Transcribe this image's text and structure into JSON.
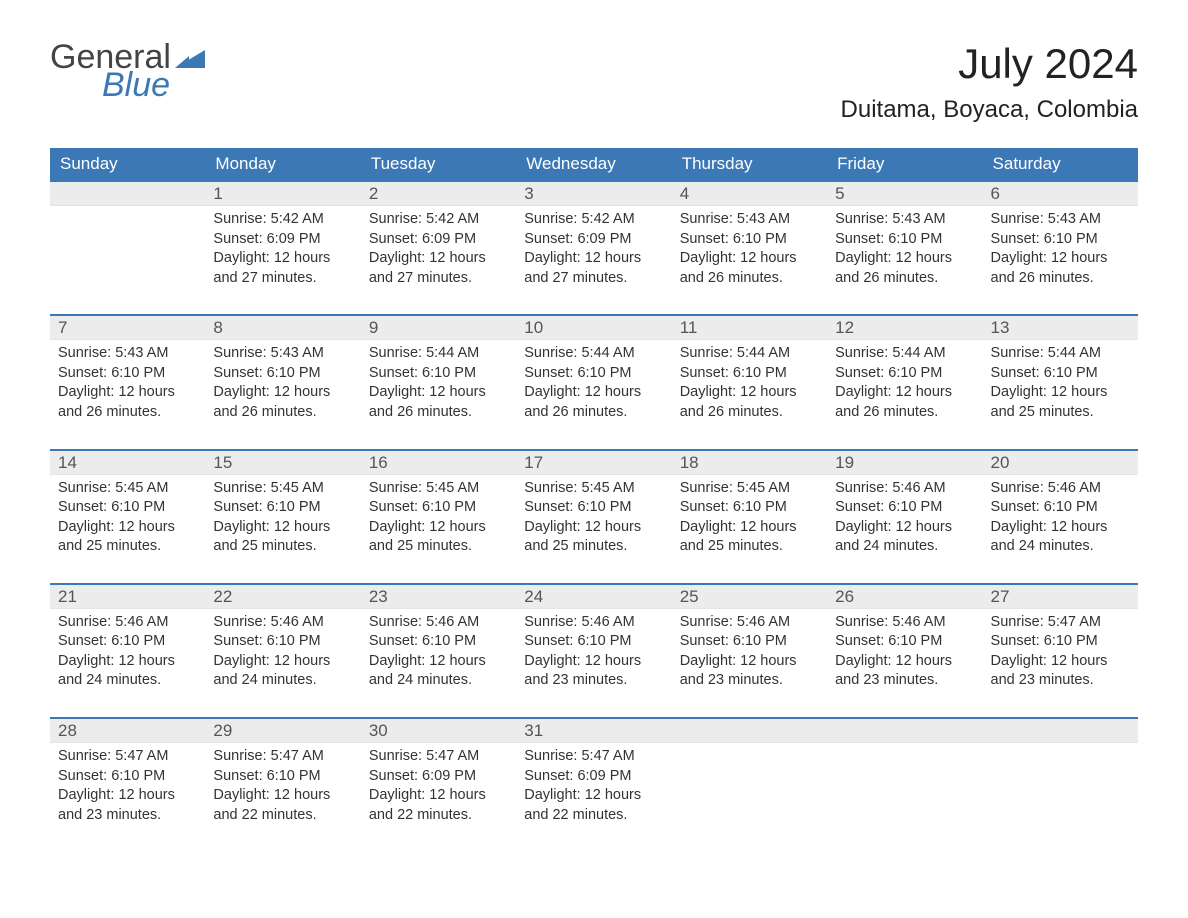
{
  "logo": {
    "general": "General",
    "blue": "Blue",
    "markColor": "#3b78b5"
  },
  "title": "July 2024",
  "location": "Duitama, Boyaca, Colombia",
  "headerBg": "#3b78b5",
  "dayHeaderBg": "#ececec",
  "weekdays": [
    "Sunday",
    "Monday",
    "Tuesday",
    "Wednesday",
    "Thursday",
    "Friday",
    "Saturday"
  ],
  "weeks": [
    [
      null,
      {
        "num": "1",
        "sunrise": "5:42 AM",
        "sunset": "6:09 PM",
        "daylight": "12 hours and 27 minutes."
      },
      {
        "num": "2",
        "sunrise": "5:42 AM",
        "sunset": "6:09 PM",
        "daylight": "12 hours and 27 minutes."
      },
      {
        "num": "3",
        "sunrise": "5:42 AM",
        "sunset": "6:09 PM",
        "daylight": "12 hours and 27 minutes."
      },
      {
        "num": "4",
        "sunrise": "5:43 AM",
        "sunset": "6:10 PM",
        "daylight": "12 hours and 26 minutes."
      },
      {
        "num": "5",
        "sunrise": "5:43 AM",
        "sunset": "6:10 PM",
        "daylight": "12 hours and 26 minutes."
      },
      {
        "num": "6",
        "sunrise": "5:43 AM",
        "sunset": "6:10 PM",
        "daylight": "12 hours and 26 minutes."
      }
    ],
    [
      {
        "num": "7",
        "sunrise": "5:43 AM",
        "sunset": "6:10 PM",
        "daylight": "12 hours and 26 minutes."
      },
      {
        "num": "8",
        "sunrise": "5:43 AM",
        "sunset": "6:10 PM",
        "daylight": "12 hours and 26 minutes."
      },
      {
        "num": "9",
        "sunrise": "5:44 AM",
        "sunset": "6:10 PM",
        "daylight": "12 hours and 26 minutes."
      },
      {
        "num": "10",
        "sunrise": "5:44 AM",
        "sunset": "6:10 PM",
        "daylight": "12 hours and 26 minutes."
      },
      {
        "num": "11",
        "sunrise": "5:44 AM",
        "sunset": "6:10 PM",
        "daylight": "12 hours and 26 minutes."
      },
      {
        "num": "12",
        "sunrise": "5:44 AM",
        "sunset": "6:10 PM",
        "daylight": "12 hours and 26 minutes."
      },
      {
        "num": "13",
        "sunrise": "5:44 AM",
        "sunset": "6:10 PM",
        "daylight": "12 hours and 25 minutes."
      }
    ],
    [
      {
        "num": "14",
        "sunrise": "5:45 AM",
        "sunset": "6:10 PM",
        "daylight": "12 hours and 25 minutes."
      },
      {
        "num": "15",
        "sunrise": "5:45 AM",
        "sunset": "6:10 PM",
        "daylight": "12 hours and 25 minutes."
      },
      {
        "num": "16",
        "sunrise": "5:45 AM",
        "sunset": "6:10 PM",
        "daylight": "12 hours and 25 minutes."
      },
      {
        "num": "17",
        "sunrise": "5:45 AM",
        "sunset": "6:10 PM",
        "daylight": "12 hours and 25 minutes."
      },
      {
        "num": "18",
        "sunrise": "5:45 AM",
        "sunset": "6:10 PM",
        "daylight": "12 hours and 25 minutes."
      },
      {
        "num": "19",
        "sunrise": "5:46 AM",
        "sunset": "6:10 PM",
        "daylight": "12 hours and 24 minutes."
      },
      {
        "num": "20",
        "sunrise": "5:46 AM",
        "sunset": "6:10 PM",
        "daylight": "12 hours and 24 minutes."
      }
    ],
    [
      {
        "num": "21",
        "sunrise": "5:46 AM",
        "sunset": "6:10 PM",
        "daylight": "12 hours and 24 minutes."
      },
      {
        "num": "22",
        "sunrise": "5:46 AM",
        "sunset": "6:10 PM",
        "daylight": "12 hours and 24 minutes."
      },
      {
        "num": "23",
        "sunrise": "5:46 AM",
        "sunset": "6:10 PM",
        "daylight": "12 hours and 24 minutes."
      },
      {
        "num": "24",
        "sunrise": "5:46 AM",
        "sunset": "6:10 PM",
        "daylight": "12 hours and 23 minutes."
      },
      {
        "num": "25",
        "sunrise": "5:46 AM",
        "sunset": "6:10 PM",
        "daylight": "12 hours and 23 minutes."
      },
      {
        "num": "26",
        "sunrise": "5:46 AM",
        "sunset": "6:10 PM",
        "daylight": "12 hours and 23 minutes."
      },
      {
        "num": "27",
        "sunrise": "5:47 AM",
        "sunset": "6:10 PM",
        "daylight": "12 hours and 23 minutes."
      }
    ],
    [
      {
        "num": "28",
        "sunrise": "5:47 AM",
        "sunset": "6:10 PM",
        "daylight": "12 hours and 23 minutes."
      },
      {
        "num": "29",
        "sunrise": "5:47 AM",
        "sunset": "6:10 PM",
        "daylight": "12 hours and 22 minutes."
      },
      {
        "num": "30",
        "sunrise": "5:47 AM",
        "sunset": "6:09 PM",
        "daylight": "12 hours and 22 minutes."
      },
      {
        "num": "31",
        "sunrise": "5:47 AM",
        "sunset": "6:09 PM",
        "daylight": "12 hours and 22 minutes."
      },
      null,
      null,
      null
    ]
  ],
  "labels": {
    "sunrise": "Sunrise: ",
    "sunset": "Sunset: ",
    "daylight": "Daylight: "
  }
}
